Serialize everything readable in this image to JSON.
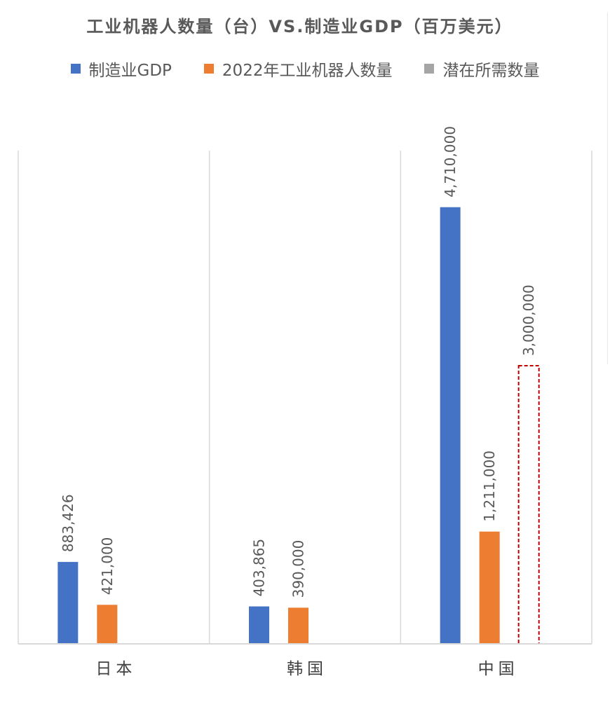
{
  "chart_data": {
    "type": "bar",
    "title": "工业机器人数量（台）VS.制造业GDP（百万美元）",
    "categories": [
      "日本",
      "韩国",
      "中国"
    ],
    "series": [
      {
        "name": "制造业GDP",
        "color": "#4472C4",
        "values": [
          883426,
          403865,
          4710000
        ],
        "labels": [
          "883,426",
          "403,865",
          "4,710,000"
        ],
        "style": "solid"
      },
      {
        "name": "2022年工业机器人数量",
        "color": "#ED7D31",
        "values": [
          421000,
          390000,
          1211000
        ],
        "labels": [
          "421,000",
          "390,000",
          "1,211,000"
        ],
        "style": "solid"
      },
      {
        "name": "潜在所需数量",
        "color": "#A5A5A5",
        "outline_color": "#C00000",
        "values": [
          null,
          null,
          3000000
        ],
        "labels": [
          "",
          "",
          "3,000,000"
        ],
        "style": "dashed-outline"
      }
    ],
    "ylim": [
      0,
      5000000
    ],
    "gridlines": "vertical-category-separators",
    "legend_position": "top"
  }
}
